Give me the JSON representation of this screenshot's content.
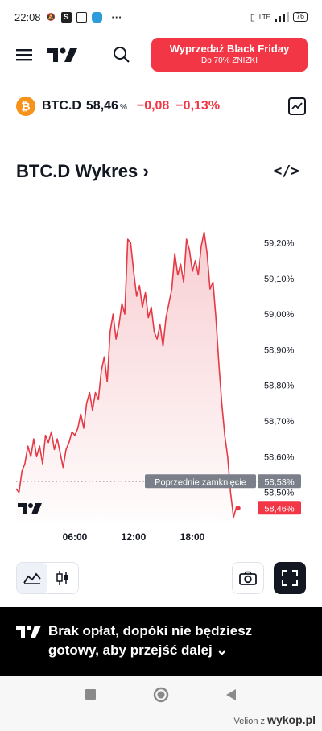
{
  "status_bar": {
    "time": "22:08",
    "dots": "···",
    "network": "LTE",
    "battery": "76"
  },
  "header": {
    "promo_title": "Wyprzedaż Black Friday",
    "promo_subtitle": "Do 70% ZNIŻKI"
  },
  "ticker": {
    "coin_letter": "₿",
    "symbol": "BTC.D",
    "price": "58,46",
    "percent_sign": "%",
    "change": "−0,08",
    "change_pct": "−0,13%"
  },
  "section": {
    "title": "BTC.D Wykres",
    "title_arrow": "›",
    "embed_label": "</>"
  },
  "chart_data": {
    "type": "area",
    "title": "",
    "xlabel": "",
    "ylabel": "",
    "x_ticks": [
      "06:00",
      "12:00",
      "18:00"
    ],
    "y_ticks": [
      "59,20%",
      "59,10%",
      "59,00%",
      "58,90%",
      "58,80%",
      "58,70%",
      "58,60%",
      "58,50%"
    ],
    "y_tick_values": [
      59.2,
      59.1,
      59.0,
      58.9,
      58.8,
      58.7,
      58.6,
      58.5
    ],
    "ylim": [
      58.42,
      59.26
    ],
    "xlim": [
      0,
      24
    ],
    "x_tick_values": [
      6,
      12,
      18
    ],
    "x": [
      0,
      0.3,
      0.6,
      0.9,
      1.2,
      1.5,
      1.8,
      2.1,
      2.4,
      2.7,
      3.0,
      3.3,
      3.6,
      3.9,
      4.2,
      4.5,
      4.8,
      5.1,
      5.4,
      5.7,
      6.0,
      6.3,
      6.6,
      6.9,
      7.2,
      7.5,
      7.8,
      8.1,
      8.4,
      8.7,
      9.0,
      9.3,
      9.6,
      9.9,
      10.2,
      10.5,
      10.8,
      11.1,
      11.4,
      11.7,
      12.0,
      12.3,
      12.6,
      12.9,
      13.2,
      13.5,
      13.8,
      14.1,
      14.4,
      14.7,
      15.0,
      15.3,
      15.6,
      15.9,
      16.2,
      16.5,
      16.8,
      17.1,
      17.4,
      17.7,
      18.0,
      18.3,
      18.6,
      18.9,
      19.2,
      19.5,
      19.8,
      20.1,
      20.4,
      20.7,
      21.0,
      21.3,
      21.6,
      21.9,
      22.2,
      22.5
    ],
    "values": [
      58.51,
      58.5,
      58.56,
      58.58,
      58.63,
      58.6,
      58.65,
      58.6,
      58.63,
      58.58,
      58.66,
      58.64,
      58.67,
      58.62,
      58.65,
      58.61,
      58.57,
      58.62,
      58.64,
      58.67,
      58.66,
      58.68,
      58.72,
      58.68,
      58.75,
      58.78,
      58.73,
      58.78,
      58.76,
      58.84,
      58.88,
      58.81,
      58.95,
      59.0,
      58.93,
      58.97,
      59.03,
      59.0,
      59.21,
      59.2,
      59.12,
      59.05,
      59.08,
      59.02,
      59.06,
      58.99,
      59.02,
      58.95,
      58.93,
      58.97,
      58.91,
      58.99,
      59.03,
      59.07,
      59.17,
      59.11,
      59.14,
      59.09,
      59.21,
      59.18,
      59.12,
      59.15,
      59.11,
      59.19,
      59.23,
      59.17,
      59.07,
      59.09,
      58.99,
      58.86,
      58.75,
      58.66,
      58.6,
      58.5,
      58.43,
      58.46
    ],
    "previous_close": 58.53,
    "previous_close_label": "Poprzednie zamknięcie",
    "previous_close_value": "58,53%",
    "last_value_label": "58,46%",
    "colors": {
      "line": "#e53946",
      "fill": "#f7c9cd",
      "prev_close_badge": "#7a7f89",
      "last_badge": "#f23645"
    }
  },
  "toolbar": {
    "icons": [
      "area-chart-icon",
      "candles-icon",
      "camera-icon",
      "fullscreen-icon"
    ]
  },
  "banner": {
    "text": "Brak opłat, dopóki nie będziesz gotowy, aby przejść dalej",
    "chevron": "⌄"
  },
  "footer": {
    "author": "Velion",
    "z": "z",
    "brand": "wykop.pl"
  }
}
